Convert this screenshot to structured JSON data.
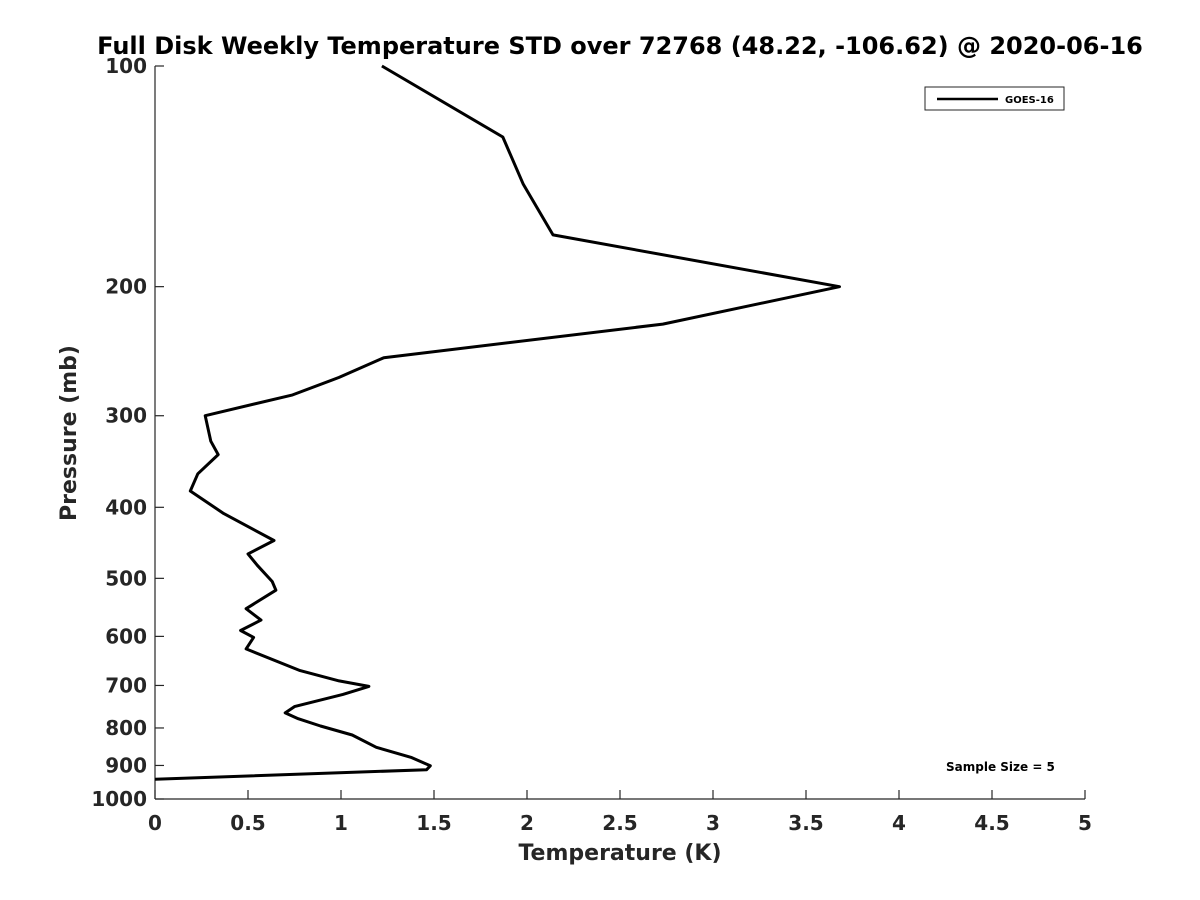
{
  "chart_data": {
    "type": "line",
    "title": "Full Disk Weekly Temperature STD over 72768 (48.22, -106.62) @ 2020-06-16",
    "xlabel": "Temperature (K)",
    "ylabel": "Pressure (mb)",
    "xlim": [
      0,
      5
    ],
    "ylim": [
      100,
      1000
    ],
    "y_scale": "log",
    "y_reversed": true,
    "grid": false,
    "legend_position": "top-right",
    "x_ticks": [
      "0",
      "0.5",
      "1",
      "1.5",
      "2",
      "2.5",
      "3",
      "3.5",
      "4",
      "4.5",
      "5"
    ],
    "y_ticks": [
      "100",
      "200",
      "300",
      "400",
      "500",
      "600",
      "700",
      "800",
      "900",
      "1000"
    ],
    "annotation": "Sample Size = 5",
    "line_color": "#000000",
    "series": [
      {
        "name": "GOES-16",
        "points": [
          [
            1.22,
            100
          ],
          [
            1.87,
            125
          ],
          [
            1.98,
            145
          ],
          [
            2.14,
            170
          ],
          [
            3.68,
            200
          ],
          [
            2.73,
            225
          ],
          [
            1.23,
            250
          ],
          [
            0.99,
            266
          ],
          [
            0.74,
            281
          ],
          [
            0.27,
            300
          ],
          [
            0.3,
            325
          ],
          [
            0.34,
            339
          ],
          [
            0.23,
            360
          ],
          [
            0.19,
            380
          ],
          [
            0.37,
            408
          ],
          [
            0.64,
            444
          ],
          [
            0.5,
            463
          ],
          [
            0.55,
            480
          ],
          [
            0.63,
            505
          ],
          [
            0.65,
            519
          ],
          [
            0.49,
            550
          ],
          [
            0.57,
            570
          ],
          [
            0.46,
            589
          ],
          [
            0.53,
            602
          ],
          [
            0.49,
            624
          ],
          [
            0.78,
            668
          ],
          [
            0.99,
            690
          ],
          [
            1.15,
            702
          ],
          [
            1.01,
            720
          ],
          [
            0.75,
            748
          ],
          [
            0.7,
            763
          ],
          [
            0.77,
            777
          ],
          [
            0.89,
            795
          ],
          [
            1.06,
            818
          ],
          [
            1.19,
            850
          ],
          [
            1.38,
            878
          ],
          [
            1.48,
            901
          ],
          [
            1.46,
            912
          ],
          [
            0.0,
            940
          ]
        ]
      }
    ]
  }
}
